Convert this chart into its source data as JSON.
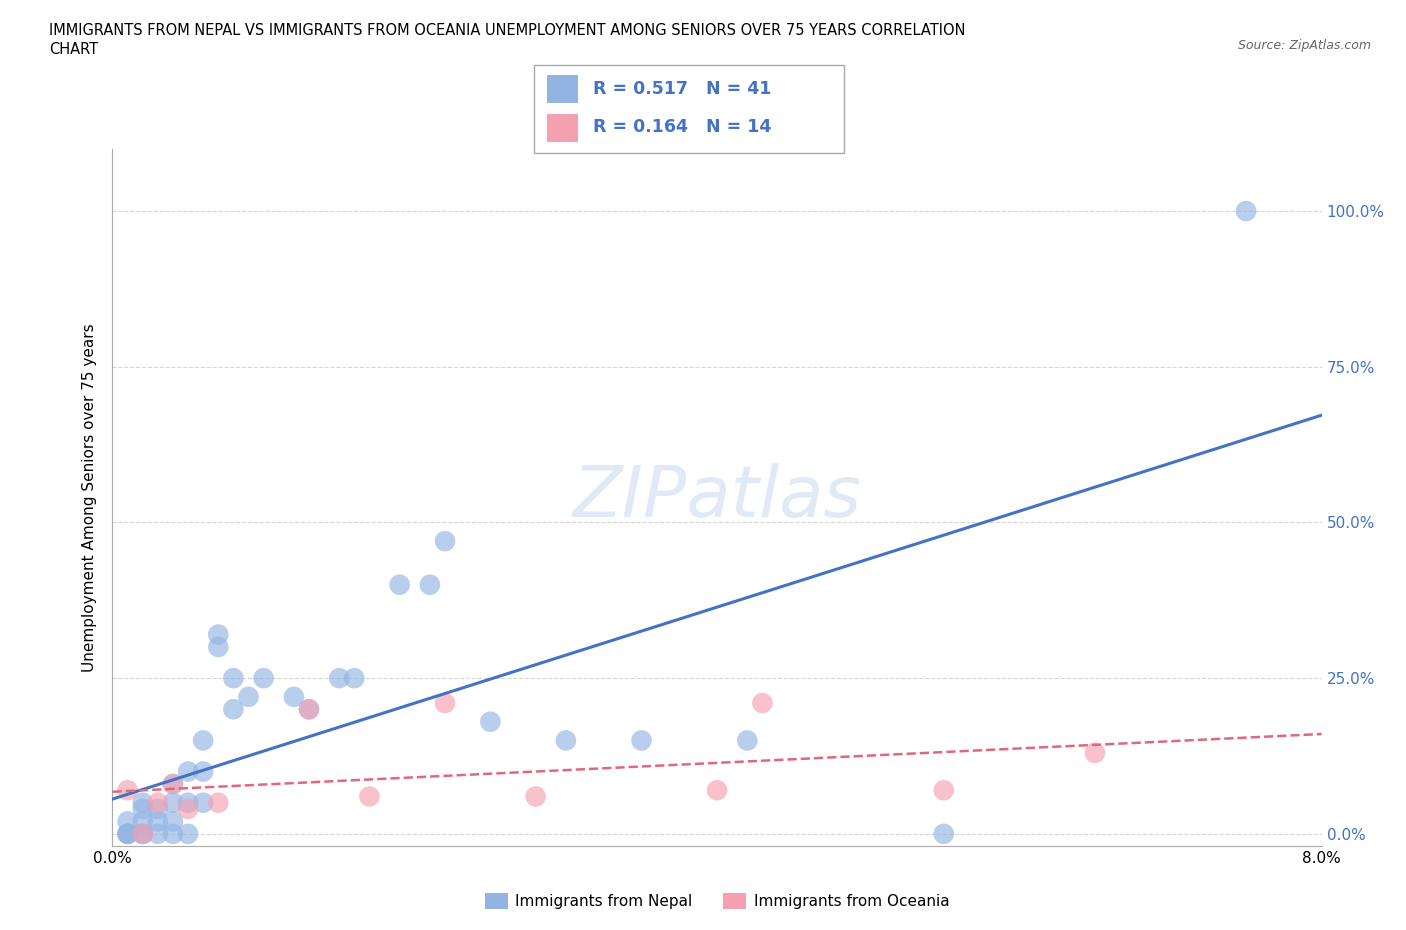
{
  "title_line1": "IMMIGRANTS FROM NEPAL VS IMMIGRANTS FROM OCEANIA UNEMPLOYMENT AMONG SENIORS OVER 75 YEARS CORRELATION",
  "title_line2": "CHART",
  "source": "Source: ZipAtlas.com",
  "ylabel": "Unemployment Among Seniors over 75 years",
  "xlabel_nepal": "Immigrants from Nepal",
  "xlabel_oceania": "Immigrants from Oceania",
  "xlim": [
    0.0,
    0.08
  ],
  "ylim": [
    -0.02,
    1.1
  ],
  "yticks": [
    0.0,
    0.25,
    0.5,
    0.75,
    1.0
  ],
  "ytick_labels": [
    "0.0%",
    "25.0%",
    "50.0%",
    "75.0%",
    "100.0%"
  ],
  "xticks": [
    0.0,
    0.02,
    0.04,
    0.06,
    0.08
  ],
  "xtick_labels": [
    "0.0%",
    "",
    "",
    "",
    "8.0%"
  ],
  "nepal_R": 0.517,
  "nepal_N": 41,
  "oceania_R": 0.164,
  "oceania_N": 14,
  "nepal_color": "#92b4e3",
  "oceania_color": "#f5a0b0",
  "nepal_line_color": "#4472c4",
  "oceania_line_color": "#e06878",
  "nepal_points_x": [
    0.001,
    0.001,
    0.001,
    0.001,
    0.002,
    0.002,
    0.002,
    0.002,
    0.002,
    0.003,
    0.003,
    0.003,
    0.004,
    0.004,
    0.004,
    0.004,
    0.005,
    0.005,
    0.005,
    0.006,
    0.006,
    0.006,
    0.007,
    0.007,
    0.008,
    0.008,
    0.009,
    0.01,
    0.012,
    0.013,
    0.015,
    0.016,
    0.019,
    0.021,
    0.022,
    0.025,
    0.03,
    0.035,
    0.042,
    0.055,
    0.075
  ],
  "nepal_points_y": [
    0.0,
    0.0,
    0.0,
    0.02,
    0.0,
    0.0,
    0.02,
    0.04,
    0.05,
    0.0,
    0.02,
    0.04,
    0.0,
    0.02,
    0.05,
    0.08,
    0.0,
    0.05,
    0.1,
    0.05,
    0.1,
    0.15,
    0.3,
    0.32,
    0.2,
    0.25,
    0.22,
    0.25,
    0.22,
    0.2,
    0.25,
    0.25,
    0.4,
    0.4,
    0.47,
    0.18,
    0.15,
    0.15,
    0.15,
    0.0,
    1.0
  ],
  "oceania_points_x": [
    0.001,
    0.002,
    0.003,
    0.004,
    0.005,
    0.007,
    0.013,
    0.017,
    0.022,
    0.028,
    0.04,
    0.043,
    0.055,
    0.065
  ],
  "oceania_points_y": [
    0.07,
    0.0,
    0.05,
    0.08,
    0.04,
    0.05,
    0.2,
    0.06,
    0.21,
    0.06,
    0.07,
    0.21,
    0.07,
    0.13
  ]
}
